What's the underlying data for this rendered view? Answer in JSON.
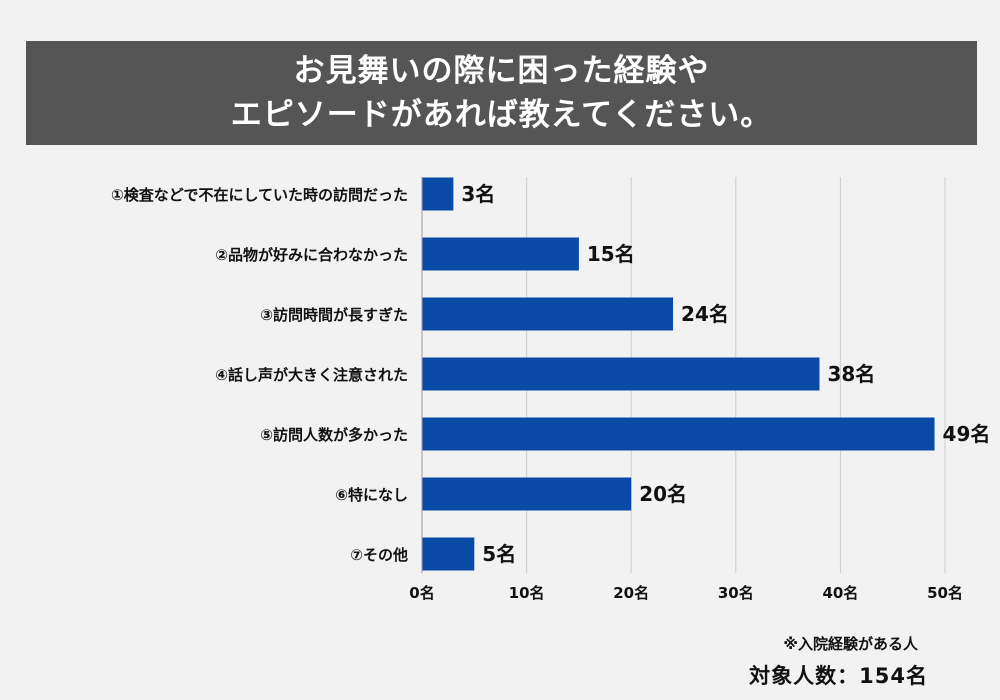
{
  "title": {
    "line1": "お見舞いの際に困った経験や",
    "line2": "エピソードがあれば教えてください。"
  },
  "chart_data": {
    "type": "bar",
    "orientation": "horizontal",
    "categories": [
      "①検査などで不在にしていた時の訪問だった",
      "②品物が好みに合わなかった",
      "③訪問時間が長すぎた",
      "④話し声が大きく注意された",
      "⑤訪問人数が多かった",
      "⑥特になし",
      "⑦その他"
    ],
    "values": [
      3,
      15,
      24,
      38,
      49,
      20,
      5
    ],
    "value_labels": [
      "3名",
      "15名",
      "24名",
      "38名",
      "49名",
      "20名",
      "5名"
    ],
    "xlim": [
      0,
      50
    ],
    "xticks": [
      0,
      10,
      20,
      30,
      40,
      50
    ],
    "xtick_labels": [
      "0名",
      "10名",
      "20名",
      "30名",
      "40名",
      "50名"
    ],
    "unit": "名",
    "grid": "vertical",
    "bar_color": "#0a4aa6",
    "grid_color": "#cccccc"
  },
  "footer": {
    "note": "※入院経験がある人",
    "total": "対象人数：154名"
  }
}
